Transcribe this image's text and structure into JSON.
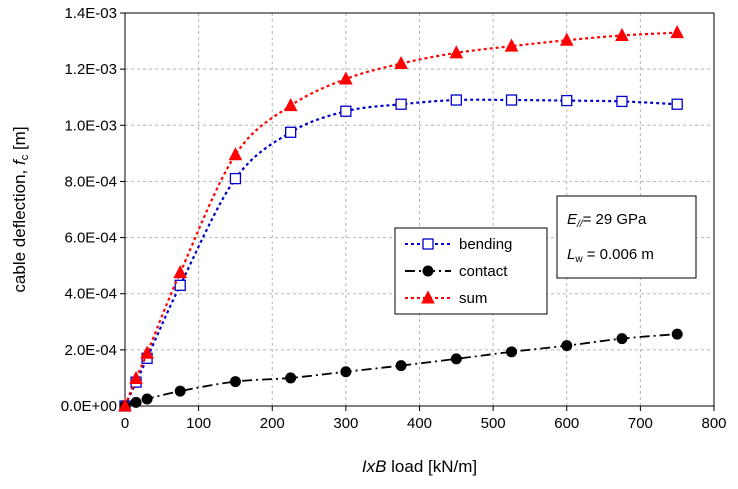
{
  "chart_data": {
    "type": "line",
    "xlabel_parts": [
      "IxB",
      " load  [kN/m]"
    ],
    "ylabel_parts": [
      "cable deflection, ",
      "f",
      "c",
      " [m]"
    ],
    "xlim": [
      0,
      800
    ],
    "ylim": [
      0,
      0.0014
    ],
    "x_ticks": [
      0,
      100,
      200,
      300,
      400,
      500,
      600,
      700,
      800
    ],
    "x_tick_labels": [
      "0",
      "100",
      "200",
      "300",
      "400",
      "500",
      "600",
      "700",
      "800"
    ],
    "y_ticks": [
      0,
      0.0002,
      0.0004,
      0.0006,
      0.0008,
      0.001,
      0.0012,
      0.0014
    ],
    "y_tick_labels": [
      "0.0E+00",
      "2.0E-04",
      "4.0E-04",
      "6.0E-04",
      "8.0E-04",
      "1.0E-03",
      "1.2E-03",
      "1.4E-03"
    ],
    "grid": true,
    "legend_position": "center-right",
    "x": [
      0,
      15,
      30,
      75,
      150,
      225,
      300,
      375,
      450,
      525,
      600,
      675,
      750
    ],
    "series": [
      {
        "name": "bending",
        "color": "#0000cc",
        "marker": "square-open",
        "line": "dotted",
        "values": [
          0,
          8.5e-05,
          0.00017,
          0.00043,
          0.00081,
          0.000975,
          0.00105,
          0.001075,
          0.00109,
          0.00109,
          0.001088,
          0.001085,
          0.001075
        ]
      },
      {
        "name": "contact",
        "color": "#000000",
        "marker": "circle-filled",
        "line": "dashdot",
        "values": [
          0,
          1.3e-05,
          2.5e-05,
          5.3e-05,
          8.7e-05,
          0.0001,
          0.000122,
          0.000144,
          0.000168,
          0.000193,
          0.000215,
          0.00024,
          0.000256
        ]
      },
      {
        "name": "sum",
        "color": "#ff0000",
        "marker": "triangle-filled",
        "line": "dotted",
        "values": [
          0,
          9.8e-05,
          0.000188,
          0.000475,
          0.000895,
          0.00107,
          0.001165,
          0.00122,
          0.001258,
          0.001282,
          0.001303,
          0.00132,
          0.00133
        ]
      }
    ],
    "annotation": {
      "line1_parts": [
        "E",
        "//",
        "= 29 GPa"
      ],
      "line2_parts": [
        "L",
        "w",
        " = 0.006 m"
      ]
    }
  }
}
